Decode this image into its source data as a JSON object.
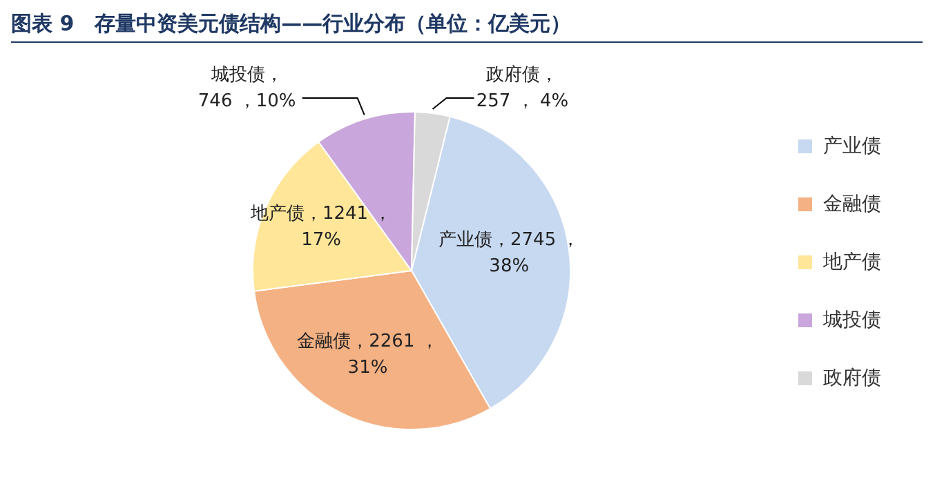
{
  "chart_data": {
    "type": "pie",
    "title": "图表 9　存量中资美元债结构——行业分布（单位：亿美元）",
    "categories": [
      "产业债",
      "金融债",
      "地产债",
      "城投债",
      "政府债"
    ],
    "values": [
      2745,
      2261,
      1241,
      746,
      257
    ],
    "colors": [
      "#c6d9f1",
      "#f4b183",
      "#ffe699",
      "#c9a6dc",
      "#d9d9d9"
    ],
    "value_labels": [
      "产业债，2745 ，\n38%",
      "金融债，2261 ，\n31%",
      "地产债，1241 ，\n17%",
      "城投债，\n746 ，10%",
      "政府债，\n257 ，  4%"
    ],
    "legend": "right"
  }
}
